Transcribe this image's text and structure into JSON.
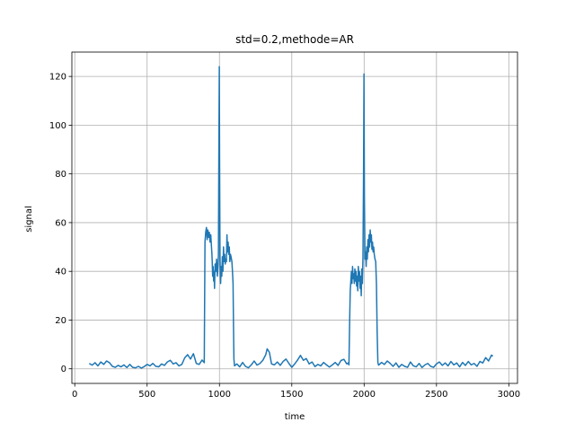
{
  "chart_data": {
    "type": "line",
    "title": "std=0.2,methode=AR",
    "xlabel": "time",
    "ylabel": "signal",
    "xlim": [
      -20,
      3060
    ],
    "ylim": [
      -6,
      130
    ],
    "xticks": [
      0,
      500,
      1000,
      1500,
      2000,
      2500,
      3000
    ],
    "yticks": [
      0,
      20,
      40,
      60,
      80,
      100,
      120
    ],
    "grid": true,
    "series": [
      {
        "color": "#1f77b4",
        "points": [
          [
            100,
            2.2
          ],
          [
            120,
            1.5
          ],
          [
            140,
            2.5
          ],
          [
            160,
            1.2
          ],
          [
            180,
            2.8
          ],
          [
            200,
            1.8
          ],
          [
            220,
            3.2
          ],
          [
            240,
            2.5
          ],
          [
            260,
            1.0
          ],
          [
            280,
            0.6
          ],
          [
            300,
            1.4
          ],
          [
            320,
            0.8
          ],
          [
            340,
            1.6
          ],
          [
            360,
            0.5
          ],
          [
            380,
            1.8
          ],
          [
            400,
            0.6
          ],
          [
            420,
            0.4
          ],
          [
            440,
            1.0
          ],
          [
            460,
            0.3
          ],
          [
            480,
            0.9
          ],
          [
            500,
            1.8
          ],
          [
            520,
            1.2
          ],
          [
            540,
            2.2
          ],
          [
            560,
            1.0
          ],
          [
            580,
            0.8
          ],
          [
            600,
            2.0
          ],
          [
            620,
            1.4
          ],
          [
            640,
            2.8
          ],
          [
            660,
            3.5
          ],
          [
            680,
            2.0
          ],
          [
            700,
            2.5
          ],
          [
            720,
            1.2
          ],
          [
            740,
            1.8
          ],
          [
            760,
            4.5
          ],
          [
            780,
            5.8
          ],
          [
            800,
            4.0
          ],
          [
            820,
            6.2
          ],
          [
            840,
            2.2
          ],
          [
            860,
            1.8
          ],
          [
            880,
            3.6
          ],
          [
            895,
            2.5
          ],
          [
            900,
            52
          ],
          [
            905,
            56
          ],
          [
            910,
            58
          ],
          [
            915,
            53
          ],
          [
            920,
            57
          ],
          [
            925,
            54
          ],
          [
            930,
            56
          ],
          [
            935,
            52
          ],
          [
            940,
            55
          ],
          [
            945,
            50
          ],
          [
            948,
            47
          ],
          [
            950,
            44
          ],
          [
            953,
            38
          ],
          [
            956,
            42
          ],
          [
            960,
            36
          ],
          [
            963,
            40
          ],
          [
            966,
            33
          ],
          [
            970,
            43
          ],
          [
            975,
            40
          ],
          [
            980,
            45
          ],
          [
            985,
            38
          ],
          [
            990,
            42
          ],
          [
            993,
            47
          ],
          [
            996,
            90
          ],
          [
            999,
            124
          ],
          [
            1001,
            85
          ],
          [
            1004,
            45
          ],
          [
            1008,
            35
          ],
          [
            1012,
            42
          ],
          [
            1016,
            38
          ],
          [
            1020,
            46
          ],
          [
            1024,
            40
          ],
          [
            1028,
            50
          ],
          [
            1032,
            44
          ],
          [
            1036,
            47
          ],
          [
            1040,
            43
          ],
          [
            1044,
            45
          ],
          [
            1048,
            44
          ],
          [
            1052,
            55
          ],
          [
            1056,
            48
          ],
          [
            1060,
            52
          ],
          [
            1064,
            47
          ],
          [
            1068,
            50
          ],
          [
            1072,
            44
          ],
          [
            1076,
            47
          ],
          [
            1080,
            46
          ],
          [
            1086,
            44
          ],
          [
            1090,
            40
          ],
          [
            1094,
            35
          ],
          [
            1097,
            18
          ],
          [
            1100,
            4
          ],
          [
            1104,
            1.2
          ],
          [
            1120,
            2.0
          ],
          [
            1140,
            0.8
          ],
          [
            1160,
            2.6
          ],
          [
            1180,
            1.0
          ],
          [
            1200,
            0.4
          ],
          [
            1220,
            1.6
          ],
          [
            1240,
            3.2
          ],
          [
            1260,
            1.5
          ],
          [
            1280,
            2.2
          ],
          [
            1300,
            3.5
          ],
          [
            1320,
            5.8
          ],
          [
            1330,
            8.2
          ],
          [
            1345,
            6.8
          ],
          [
            1360,
            2.0
          ],
          [
            1380,
            1.6
          ],
          [
            1400,
            2.8
          ],
          [
            1420,
            1.4
          ],
          [
            1440,
            3.0
          ],
          [
            1460,
            4.0
          ],
          [
            1480,
            2.2
          ],
          [
            1500,
            0.6
          ],
          [
            1520,
            2.0
          ],
          [
            1540,
            3.6
          ],
          [
            1560,
            5.5
          ],
          [
            1580,
            3.5
          ],
          [
            1600,
            4.2
          ],
          [
            1620,
            2.0
          ],
          [
            1640,
            2.8
          ],
          [
            1660,
            0.9
          ],
          [
            1680,
            1.8
          ],
          [
            1700,
            1.2
          ],
          [
            1720,
            2.6
          ],
          [
            1740,
            1.6
          ],
          [
            1760,
            0.7
          ],
          [
            1780,
            1.6
          ],
          [
            1800,
            2.6
          ],
          [
            1820,
            1.4
          ],
          [
            1840,
            3.4
          ],
          [
            1860,
            3.9
          ],
          [
            1880,
            2.0
          ],
          [
            1890,
            2.4
          ],
          [
            1895,
            1.6
          ],
          [
            1900,
            20
          ],
          [
            1904,
            32
          ],
          [
            1908,
            36
          ],
          [
            1912,
            40
          ],
          [
            1916,
            35
          ],
          [
            1920,
            42
          ],
          [
            1924,
            37
          ],
          [
            1928,
            39
          ],
          [
            1932,
            35
          ],
          [
            1936,
            41
          ],
          [
            1940,
            36
          ],
          [
            1944,
            40
          ],
          [
            1948,
            34
          ],
          [
            1952,
            38
          ],
          [
            1956,
            32
          ],
          [
            1960,
            42
          ],
          [
            1964,
            36
          ],
          [
            1968,
            40
          ],
          [
            1972,
            33
          ],
          [
            1976,
            38
          ],
          [
            1980,
            30
          ],
          [
            1984,
            41
          ],
          [
            1988,
            35
          ],
          [
            1992,
            46
          ],
          [
            1996,
            80
          ],
          [
            1999,
            121
          ],
          [
            2002,
            70
          ],
          [
            2006,
            45
          ],
          [
            2010,
            48
          ],
          [
            2014,
            42
          ],
          [
            2018,
            50
          ],
          [
            2022,
            45
          ],
          [
            2026,
            53
          ],
          [
            2030,
            48
          ],
          [
            2034,
            55
          ],
          [
            2038,
            50
          ],
          [
            2042,
            57
          ],
          [
            2046,
            52
          ],
          [
            2050,
            55
          ],
          [
            2054,
            49
          ],
          [
            2058,
            52
          ],
          [
            2062,
            48
          ],
          [
            2066,
            50
          ],
          [
            2070,
            47
          ],
          [
            2075,
            45
          ],
          [
            2080,
            44
          ],
          [
            2085,
            35
          ],
          [
            2090,
            15
          ],
          [
            2095,
            2.5
          ],
          [
            2100,
            1.5
          ],
          [
            2120,
            2.6
          ],
          [
            2140,
            1.8
          ],
          [
            2160,
            3.2
          ],
          [
            2180,
            2.2
          ],
          [
            2200,
            1.0
          ],
          [
            2220,
            2.4
          ],
          [
            2240,
            0.6
          ],
          [
            2260,
            1.8
          ],
          [
            2280,
            1.0
          ],
          [
            2300,
            0.6
          ],
          [
            2320,
            2.8
          ],
          [
            2340,
            1.2
          ],
          [
            2360,
            0.8
          ],
          [
            2380,
            2.2
          ],
          [
            2400,
            0.5
          ],
          [
            2420,
            1.6
          ],
          [
            2440,
            2.2
          ],
          [
            2460,
            1.0
          ],
          [
            2480,
            0.6
          ],
          [
            2500,
            2.0
          ],
          [
            2520,
            2.8
          ],
          [
            2540,
            1.4
          ],
          [
            2560,
            2.4
          ],
          [
            2580,
            1.2
          ],
          [
            2600,
            3.0
          ],
          [
            2620,
            1.6
          ],
          [
            2640,
            2.4
          ],
          [
            2660,
            0.8
          ],
          [
            2680,
            2.6
          ],
          [
            2700,
            1.4
          ],
          [
            2720,
            3.0
          ],
          [
            2740,
            1.6
          ],
          [
            2760,
            2.2
          ],
          [
            2780,
            1.0
          ],
          [
            2800,
            3.0
          ],
          [
            2820,
            2.4
          ],
          [
            2840,
            4.6
          ],
          [
            2860,
            3.2
          ],
          [
            2880,
            5.6
          ],
          [
            2890,
            5.2
          ]
        ]
      }
    ]
  }
}
